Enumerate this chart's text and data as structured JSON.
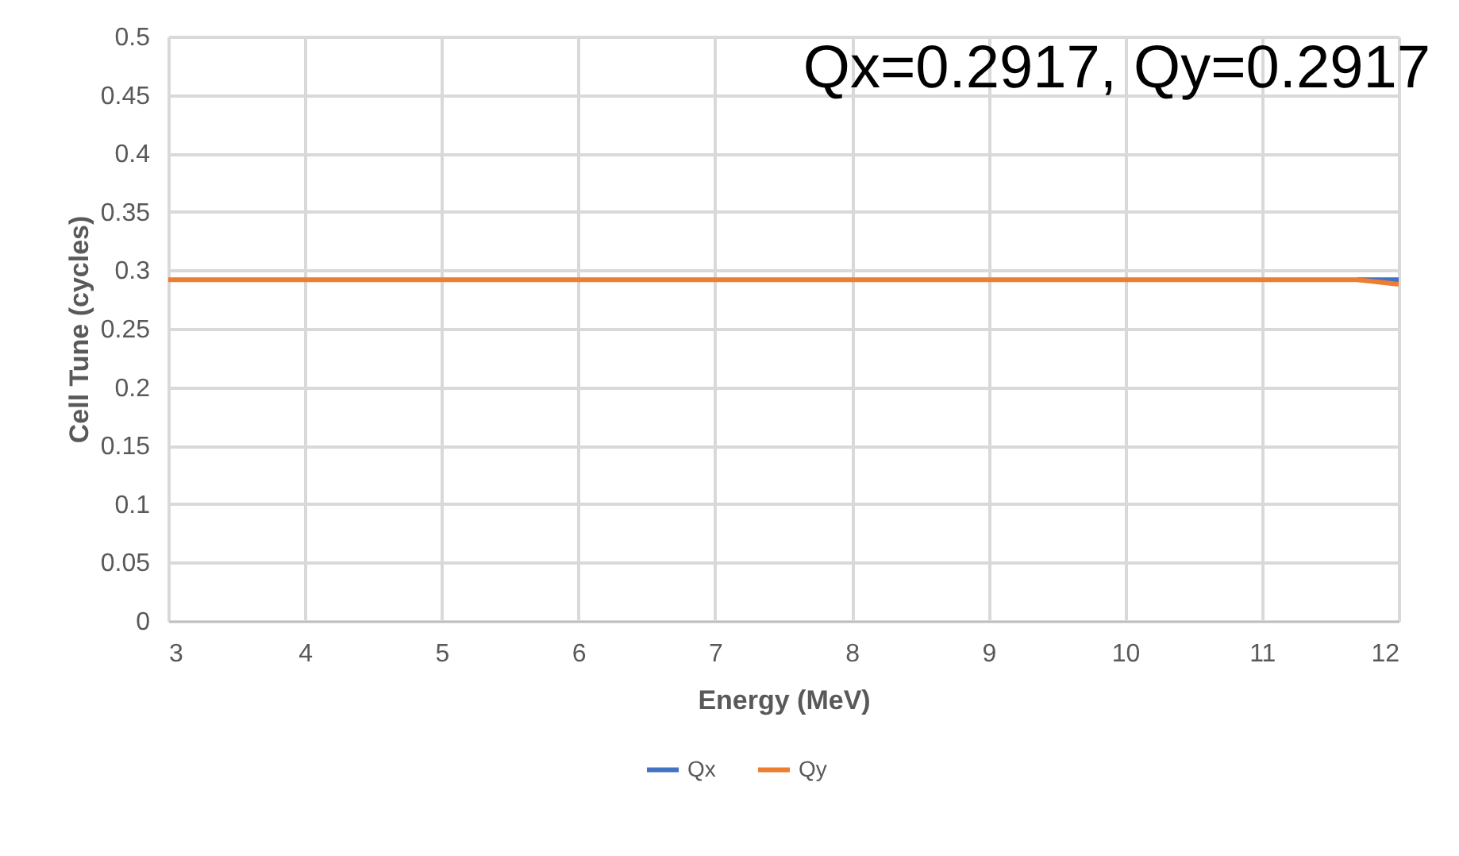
{
  "chart_data": {
    "type": "line",
    "xlabel": "Energy (MeV)",
    "ylabel": "Cell Tune (cycles)",
    "x": [
      3,
      4,
      5,
      6,
      7,
      8,
      9,
      10,
      11,
      11.7,
      12
    ],
    "series": [
      {
        "name": "Qx",
        "color": "#4472c4",
        "values": [
          null,
          null,
          null,
          null,
          null,
          null,
          null,
          null,
          null,
          0.292,
          0.292
        ]
      },
      {
        "name": "Qy",
        "color": "#ed7d31",
        "values": [
          0.292,
          0.292,
          0.292,
          0.292,
          0.292,
          0.292,
          0.292,
          0.292,
          0.292,
          0.292,
          0.288
        ]
      }
    ],
    "xlim": [
      3,
      12
    ],
    "xticks": [
      3,
      4,
      5,
      6,
      7,
      8,
      9,
      10,
      11,
      12
    ],
    "ylim": [
      0,
      0.5
    ],
    "yticks": [
      0,
      0.05,
      0.1,
      0.15,
      0.2,
      0.25,
      0.3,
      0.35,
      0.4,
      0.45,
      0.5
    ],
    "annotations": [
      "Qx=0.2917, Qy=0.2917"
    ],
    "grid": true,
    "legend": "bottom",
    "marker": "none",
    "line_style": "solid"
  }
}
